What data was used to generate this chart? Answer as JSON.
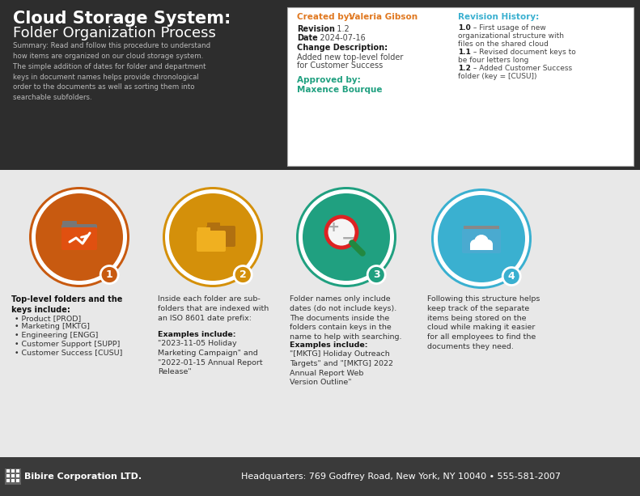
{
  "title_line1": "Cloud Storage System:",
  "title_line2": "Folder Organization Process",
  "summary": "Summary: Read and follow this procedure to understand\nhow items are organized on our cloud storage system.\nThe simple addition of dates for folder and department\nkeys in document names helps provide chronological\norder to the documents as well as sorting them into\nsearchable subfolders.",
  "header_bg": "#2d2d2d",
  "mid_bg": "#e8e8e8",
  "footer_bg": "#3a3a3a",
  "orange_color": "#e07820",
  "teal_color": "#20a080",
  "blue_color": "#3ab0d0",
  "circle_colors": [
    "#c85a10",
    "#d4900a",
    "#20a080",
    "#3ab0d0"
  ],
  "circle_ring_colors": [
    "#c85a10",
    "#d4900a",
    "#20a080",
    "#3ab0d0"
  ],
  "circle_numbers": [
    "1",
    "2",
    "3",
    "4"
  ],
  "box1_title_bold": "Top-level folders and the\nkeys include:",
  "box1_bullets": [
    "Product [PROD]",
    "Marketing [MKTG]",
    "Engineering [ENGG]",
    "Customer Support [SUPP]",
    "Customer Success [CUSU]"
  ],
  "box2_text": "Inside each folder are sub-\nfolders that are indexed with\nan ISO 8601 date prefix:",
  "box2_examples_label": "Examples include:",
  "box2_examples": "\"2023-11-05 Holiday\nMarketing Campaign\" and\n\"2022-01-15 Annual Report\nRelease\"",
  "box3_text": "Folder names only include\ndates (do not include keys).\nThe documents inside the\nfolders contain keys in the\nname to help with searching.",
  "box3_examples_label": "Examples include:",
  "box3_examples": "\"[MKTG] Holiday Outreach\nTargets\" and \"[MKTG] 2022\nAnnual Report Web\nVersion Outline\"",
  "box4_text": "Following this structure helps\nkeep track of the separate\nitems being stored on the\ncloud while making it easier\nfor all employees to find the\ndocuments they need.",
  "footer_logo_text": "Bibire Corporation LTD.",
  "footer_address": "Headquarters: 769 Godfrey Road, New York, NY 10040 • 555-581-2007",
  "created_by_label": "Created by: ",
  "created_by_name": "Valeria Gibson",
  "revision_hist_label": "Revision History:",
  "revision_hist_lines": [
    [
      "1.0",
      " – First usage of new"
    ],
    [
      "",
      "organizational structure with"
    ],
    [
      "",
      "files on the shared cloud"
    ],
    [
      "1.1",
      " – Revised document keys to"
    ],
    [
      "",
      "be four letters long"
    ],
    [
      "1.2",
      " – Added Customer Success"
    ],
    [
      "",
      "folder (key = [CUSU])"
    ]
  ]
}
